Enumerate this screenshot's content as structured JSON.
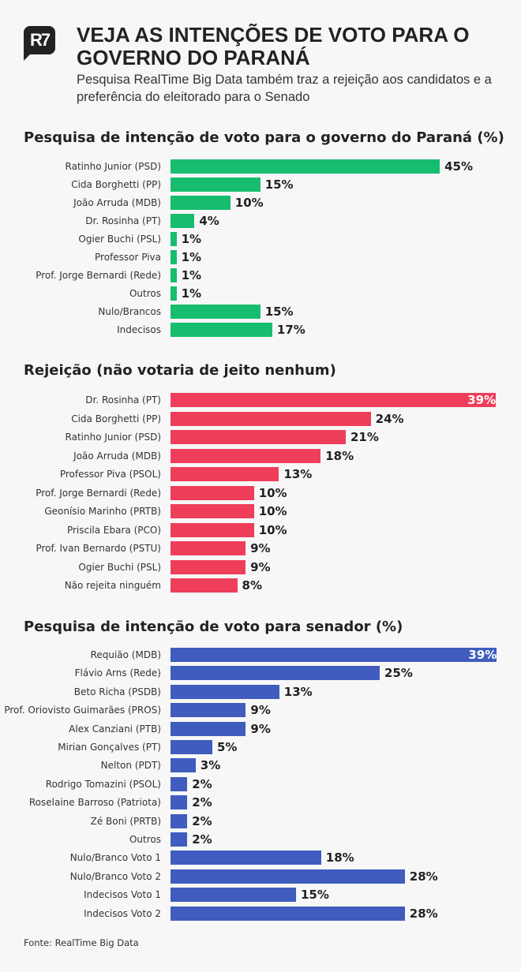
{
  "header": {
    "logo": "R7",
    "title": "VEJA AS INTENÇÕES DE VOTO PARA O GOVERNO DO PARANÁ",
    "subtitle": "Pesquisa RealTime Big Data também traz a rejeição aos candidatos e a preferência do eleitorado para o Senado"
  },
  "chart_data": [
    {
      "type": "bar",
      "orientation": "horizontal",
      "title": "Pesquisa de intenção de voto para o governo do Paraná (%)",
      "color": "#17bd6f",
      "categories": [
        "Ratinho Junior (PSD)",
        "Cida Borghetti (PP)",
        "João Arruda (MDB)",
        "Dr. Rosinha (PT)",
        "Ogier Buchi (PSL)",
        "Professor Piva",
        "Prof. Jorge Bernardi (Rede)",
        "Outros",
        "Nulo/Brancos",
        "Indecisos"
      ],
      "values": [
        45,
        15,
        10,
        4,
        1,
        1,
        1,
        1,
        15,
        17
      ],
      "unit": "%"
    },
    {
      "type": "bar",
      "orientation": "horizontal",
      "title": "Rejeição (não votaria de jeito nenhum)",
      "color": "#ef3e5a",
      "categories": [
        "Dr. Rosinha (PT)",
        "Cida Borghetti (PP)",
        "Ratinho Junior (PSD)",
        "João Arruda (MDB)",
        "Professor Piva (PSOL)",
        "Prof. Jorge Bernardi (Rede)",
        "Geonísio Marinho (PRTB)",
        "Priscila Ebara (PCO)",
        "Prof. Ivan Bernardo (PSTU)",
        "Ogier Buchi (PSL)",
        "Não rejeita ninguém"
      ],
      "values": [
        39,
        24,
        21,
        18,
        13,
        10,
        10,
        10,
        9,
        9,
        8
      ],
      "unit": "%"
    },
    {
      "type": "bar",
      "orientation": "horizontal",
      "title": "Pesquisa de intenção de voto para senador (%)",
      "color": "#3f5cbe",
      "categories": [
        "Requião (MDB)",
        "Flávio Arns (Rede)",
        "Beto Richa (PSDB)",
        "Prof. Oriovisto Guimarães (PROS)",
        "Alex Canziani (PTB)",
        "Mirian Gonçalves (PT)",
        "Nelton (PDT)",
        "Rodrigo Tomazini (PSOL)",
        "Roselaine Barroso (Patriota)",
        "Zé Boni (PRTB)",
        "Outros",
        "Nulo/Branco Voto 1",
        "Nulo/Branco Voto 2",
        "Indecisos Voto 1",
        "Indecisos Voto 2"
      ],
      "values": [
        39,
        25,
        13,
        9,
        9,
        5,
        3,
        2,
        2,
        2,
        2,
        18,
        28,
        15,
        28
      ],
      "unit": "%"
    }
  ],
  "footer": {
    "source": "Fonte: RealTime Big Data"
  }
}
